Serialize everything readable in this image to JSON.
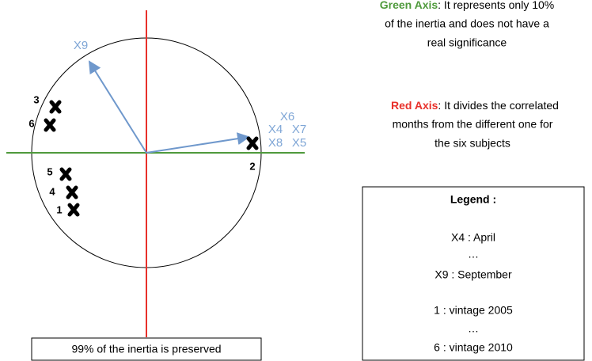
{
  "diagram": {
    "vectors": [
      "X9",
      "X6",
      "X4",
      "X7",
      "X8",
      "X5"
    ],
    "points": [
      "1",
      "2",
      "3",
      "4",
      "5",
      "6"
    ],
    "note": "99% of the inertia is preserved",
    "green_axis": {
      "title": "Green Axis",
      "lines": [
        ": It represents only 10%",
        "of the inertia and does not have a",
        "real significance"
      ]
    },
    "red_axis": {
      "title": "Red Axis",
      "lines": [
        ": It divides the correlated",
        "months from the different one for",
        "the six subjects"
      ]
    },
    "legend": {
      "title": "Legend :",
      "lines": [
        "X4 : April",
        "…",
        "X9 : September",
        "1 : vintage 2005",
        "…",
        "6 : vintage 2010"
      ]
    }
  }
}
